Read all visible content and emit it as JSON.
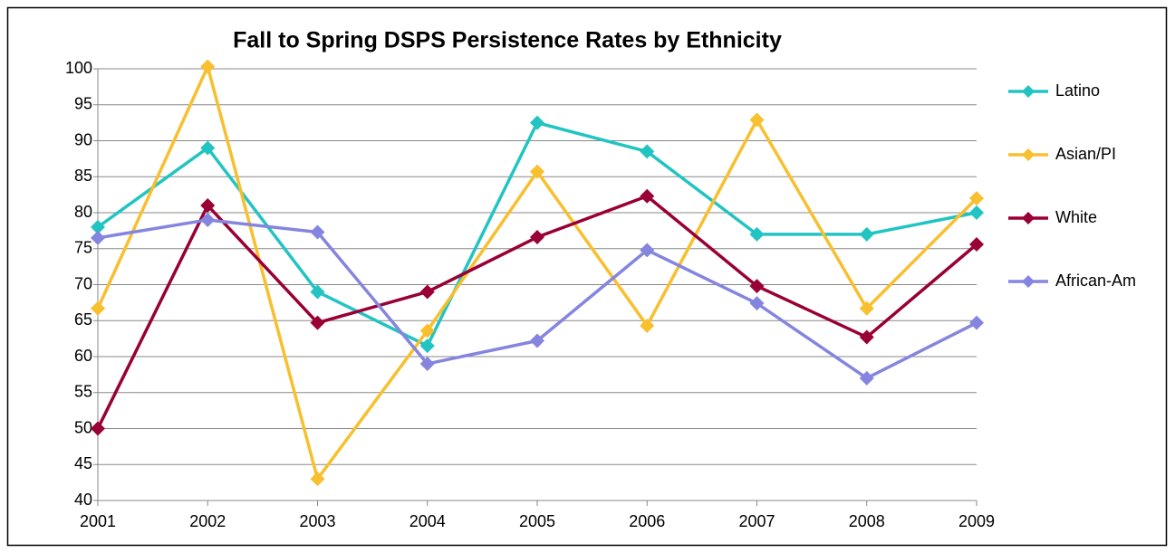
{
  "chart_data": {
    "type": "line",
    "title": "Fall to Spring DSPS Persistence Rates by Ethnicity",
    "categories": [
      "2001",
      "2002",
      "2003",
      "2004",
      "2005",
      "2006",
      "2007",
      "2008",
      "2009"
    ],
    "series": [
      {
        "name": "Latino",
        "color": "#22c4c2",
        "values": [
          78,
          89,
          69,
          61.5,
          92.5,
          88.5,
          77,
          77,
          80
        ]
      },
      {
        "name": "Asian/PI",
        "color": "#f8bf2e",
        "values": [
          66.7,
          100.3,
          43,
          63.6,
          85.7,
          64.3,
          92.9,
          66.7,
          82
        ]
      },
      {
        "name": "White",
        "color": "#990036",
        "values": [
          50,
          81,
          64.7,
          69,
          76.6,
          82.3,
          69.8,
          62.7,
          75.6
        ]
      },
      {
        "name": "African-Am",
        "color": "#8585e0",
        "values": [
          76.5,
          79,
          77.3,
          59,
          62.2,
          74.8,
          67.4,
          57,
          64.7
        ]
      }
    ],
    "ylim": [
      40,
      100
    ],
    "yticks": [
      40,
      45,
      50,
      55,
      60,
      65,
      70,
      75,
      80,
      85,
      90,
      95,
      100
    ],
    "grid": true,
    "legend": "right"
  }
}
